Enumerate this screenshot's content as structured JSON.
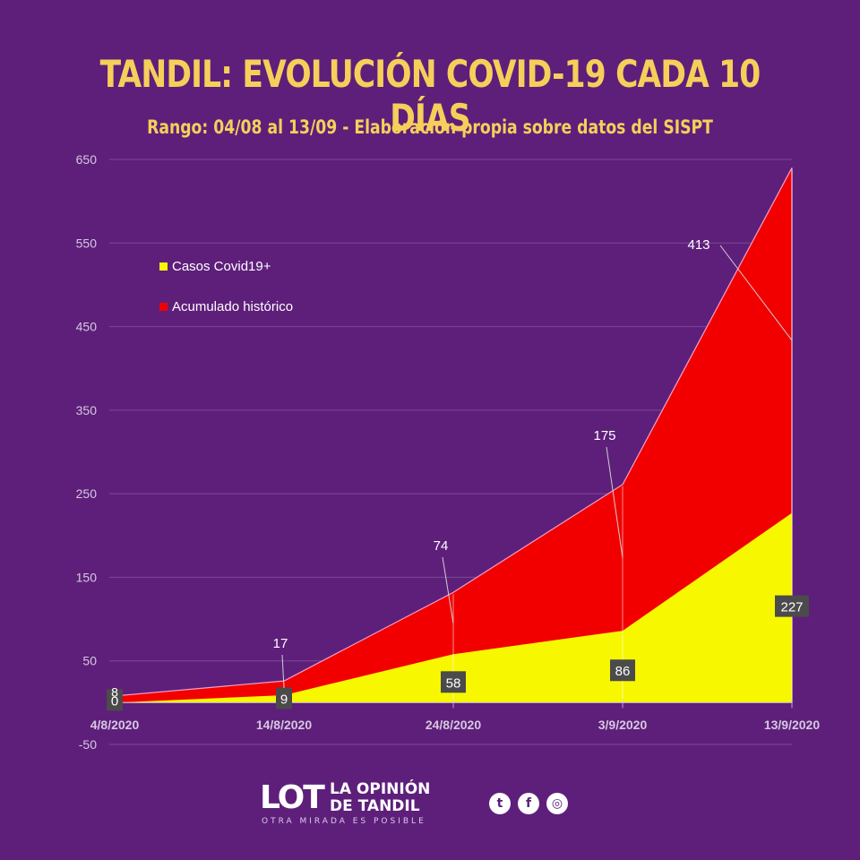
{
  "colors": {
    "background": "#5e1f7b",
    "title": "#f6cf5a",
    "cases": "#f7f700",
    "cumulative": "#f20000",
    "grid": "#7a4a93",
    "axis_text": "#d6c8e0",
    "label_box": "#4b4b4b"
  },
  "header": {
    "title": "TANDIL: EVOLUCIÓN COVID-19 CADA 10 DÍAS",
    "subtitle": "Rango: 04/08 al 13/09 - Elaboración propia sobre datos del SISPT"
  },
  "chart_data": {
    "type": "area",
    "stacked": true,
    "categories": [
      "4/8/2020",
      "14/8/2020",
      "24/8/2020",
      "3/9/2020",
      "13/9/2020"
    ],
    "series": [
      {
        "name": "Casos Covid19+",
        "color": "#f7f700",
        "values": [
          0,
          9,
          58,
          86,
          227
        ]
      },
      {
        "name": "Acumulado histórico",
        "color": "#f20000",
        "values": [
          8,
          17,
          74,
          175,
          413
        ]
      }
    ],
    "yticks": [
      -50,
      50,
      150,
      250,
      350,
      450,
      550,
      650
    ],
    "ylim": [
      -50,
      650
    ],
    "grid": true,
    "legend_position": "upper-left"
  },
  "footer": {
    "logo_text": "LOT",
    "brand_name": "LA OPINIÓN\nDE TANDIL",
    "tagline": "OTRA MIRADA ES POSIBLE",
    "socials": [
      "twitter-icon",
      "facebook-icon",
      "instagram-icon"
    ]
  }
}
